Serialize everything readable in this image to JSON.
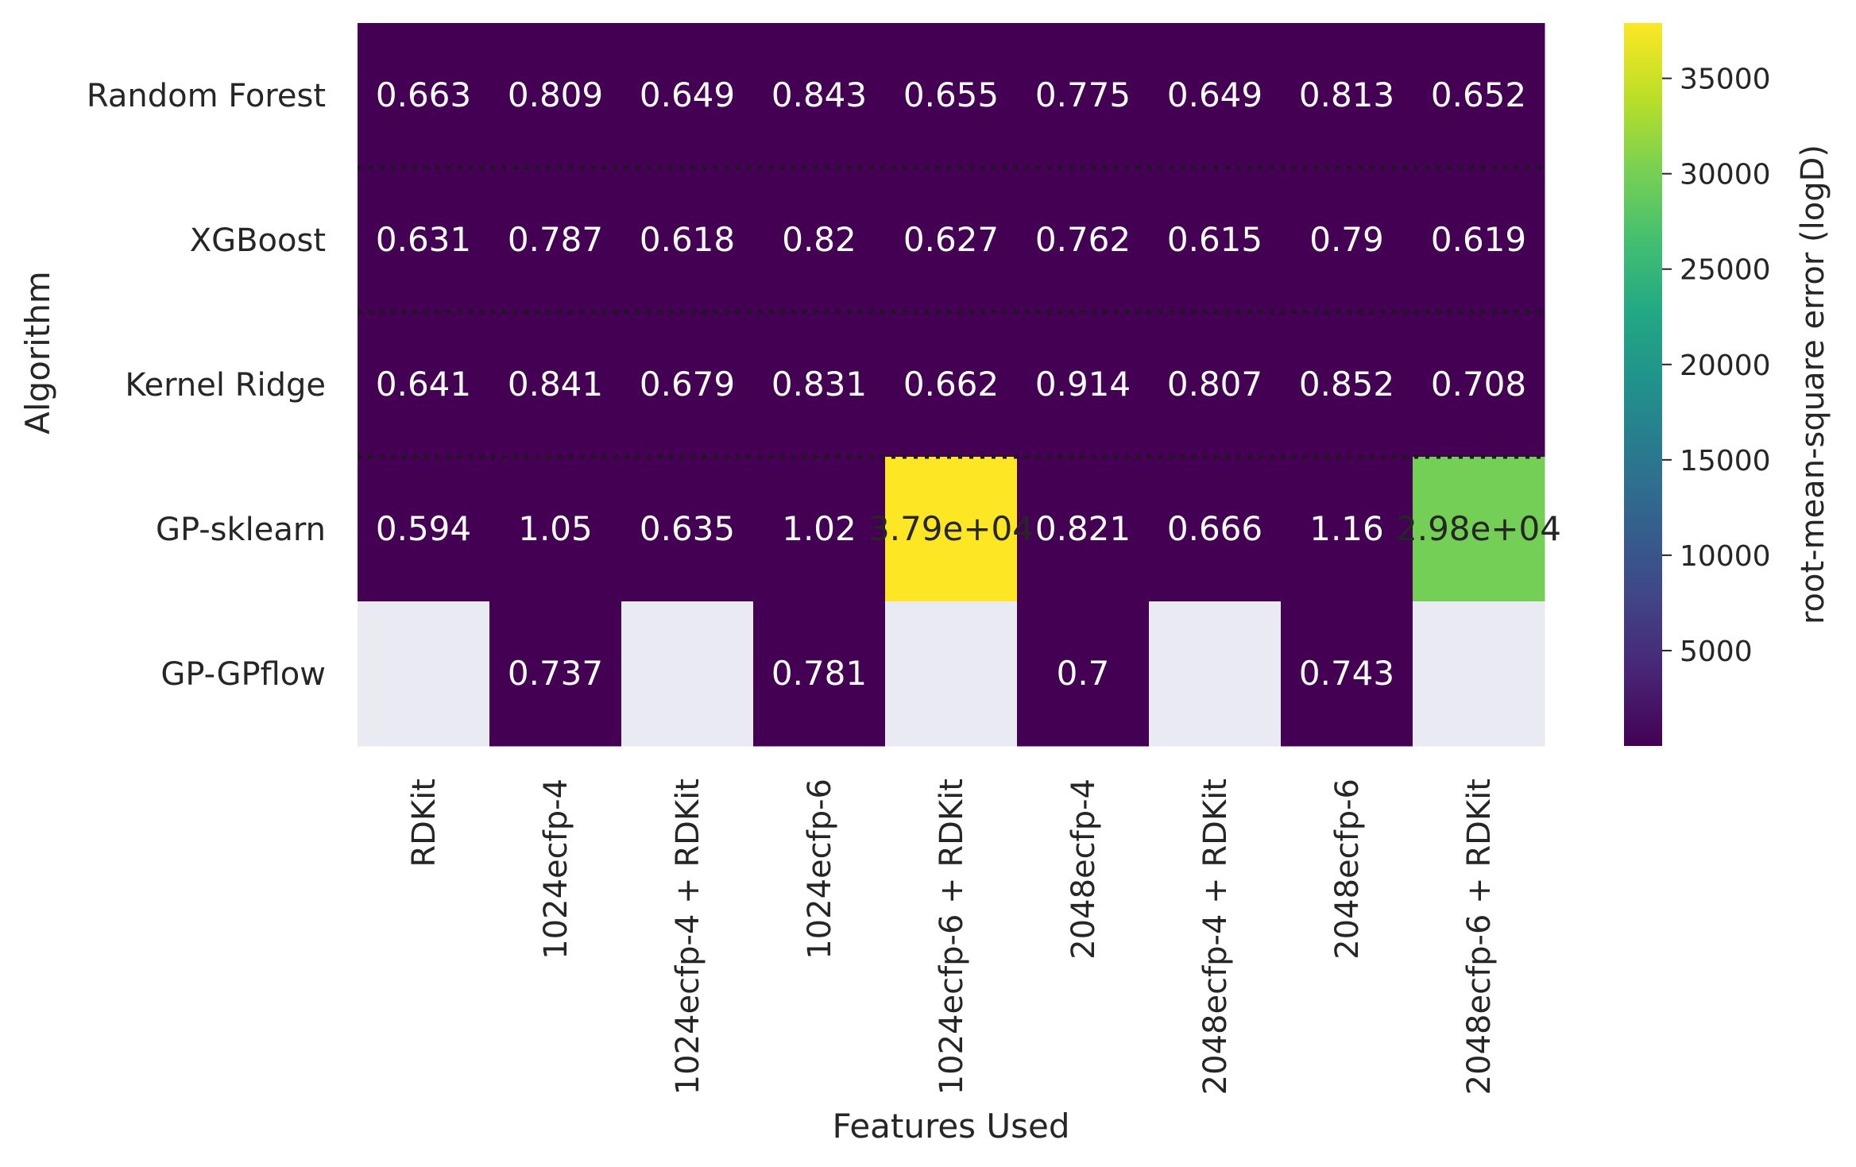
{
  "chart_data": {
    "type": "heatmap",
    "xlabel": "Features Used",
    "ylabel": "Algorithm",
    "x_categories": [
      "RDKit",
      "1024ecfp-4",
      "1024ecfp-4 + RDKit",
      "1024ecfp-6",
      "1024ecfp-6 + RDKit",
      "2048ecfp-4",
      "2048ecfp-4 + RDKit",
      "2048ecfp-6",
      "2048ecfp-6 + RDKit"
    ],
    "y_categories": [
      "Random Forest",
      "XGBoost",
      "Kernel Ridge",
      "GP-sklearn",
      "GP-GPflow"
    ],
    "values": [
      [
        0.663,
        0.809,
        0.649,
        0.843,
        0.655,
        0.775,
        0.649,
        0.813,
        0.652
      ],
      [
        0.631,
        0.787,
        0.618,
        0.82,
        0.627,
        0.762,
        0.615,
        0.79,
        0.619
      ],
      [
        0.641,
        0.841,
        0.679,
        0.831,
        0.662,
        0.914,
        0.807,
        0.852,
        0.708
      ],
      [
        0.594,
        1.05,
        0.635,
        1.02,
        37900,
        0.821,
        0.666,
        1.16,
        29800
      ],
      [
        null,
        0.737,
        null,
        0.781,
        null,
        0.7,
        null,
        0.743,
        null
      ]
    ],
    "cell_labels": [
      [
        "0.663",
        "0.809",
        "0.649",
        "0.843",
        "0.655",
        "0.775",
        "0.649",
        "0.813",
        "0.652"
      ],
      [
        "0.631",
        "0.787",
        "0.618",
        "0.82",
        "0.627",
        "0.762",
        "0.615",
        "0.79",
        "0.619"
      ],
      [
        "0.641",
        "0.841",
        "0.679",
        "0.831",
        "0.662",
        "0.914",
        "0.807",
        "0.852",
        "0.708"
      ],
      [
        "0.594",
        "1.05",
        "0.635",
        "1.02",
        "3.79e+04",
        "0.821",
        "0.666",
        "1.16",
        "2.98e+04"
      ],
      [
        "",
        "0.737",
        "",
        "0.781",
        "",
        "0.7",
        "",
        "0.743",
        ""
      ]
    ],
    "colorbar": {
      "label": "root-mean-square error (logD)",
      "colormap": "viridis",
      "vmin": 0.594,
      "vmax": 37900,
      "ticks": [
        5000,
        10000,
        15000,
        20000,
        25000,
        30000,
        35000
      ]
    },
    "missing_color": "#eaeaf2",
    "row_separator": "dotted"
  }
}
